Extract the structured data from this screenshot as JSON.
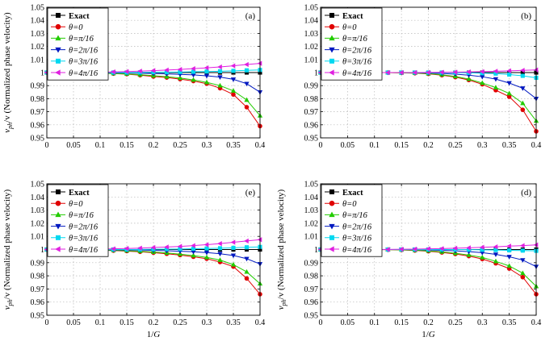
{
  "chart_data": [
    {
      "type": "line",
      "panel_label": "(a)",
      "xlabel": "",
      "ylabel": "v_ph/v (Normalized phase velocity)",
      "x": [
        0,
        0.025,
        0.05,
        0.075,
        0.1,
        0.125,
        0.15,
        0.175,
        0.2,
        0.225,
        0.25,
        0.275,
        0.3,
        0.325,
        0.35,
        0.375,
        0.4
      ],
      "xlim": [
        0,
        0.4
      ],
      "ylim": [
        0.95,
        1.05
      ],
      "xticks": [
        "0",
        "0.05",
        "0.1",
        "0.15",
        "0.2",
        "0.25",
        "0.3",
        "0.35",
        "0.4"
      ],
      "yticks": [
        "0.95",
        "0.96",
        "0.97",
        "0.98",
        "0.99",
        "1",
        "1.01",
        "1.02",
        "1.03",
        "1.04",
        "1.05"
      ],
      "legend": "top-left",
      "series": [
        {
          "name": "Exact",
          "marker": "square",
          "color": "#000000",
          "values": [
            1,
            1,
            1,
            1,
            1,
            1,
            1,
            1,
            1,
            1,
            1,
            1,
            1,
            1,
            1,
            1,
            1
          ]
        },
        {
          "name": "θ=0",
          "marker": "circle",
          "color": "#e00000",
          "values": [
            1,
            1,
            1,
            0.9999,
            0.9995,
            0.9992,
            0.9988,
            0.998,
            0.997,
            0.9962,
            0.995,
            0.9935,
            0.9915,
            0.988,
            0.9832,
            0.9735,
            0.959
          ]
        },
        {
          "name": "θ=π/16",
          "marker": "triangle-up",
          "color": "#22cc00",
          "values": [
            1,
            1,
            1,
            0.9999,
            0.9996,
            0.9993,
            0.999,
            0.9984,
            0.9976,
            0.9968,
            0.9958,
            0.9944,
            0.9925,
            0.99,
            0.986,
            0.979,
            0.967
          ]
        },
        {
          "name": "θ=2π/16",
          "marker": "triangle-down",
          "color": "#0018c0",
          "values": [
            1,
            1,
            1,
            1,
            0.9999,
            0.9998,
            0.9997,
            0.9995,
            0.9993,
            0.999,
            0.9986,
            0.9982,
            0.9975,
            0.9965,
            0.9948,
            0.9915,
            0.985
          ]
        },
        {
          "name": "θ=3π/16",
          "marker": "square",
          "color": "#00d8f0",
          "values": [
            1,
            1,
            1,
            1,
            1,
            1,
            1,
            1.0001,
            1.0002,
            1.0003,
            1.0004,
            1.0006,
            1.0008,
            1.001,
            1.0013,
            1.0017,
            1.002
          ]
        },
        {
          "name": "θ=4π/16",
          "marker": "triangle-left",
          "color": "#e020e0",
          "values": [
            1,
            1,
            1,
            1.0001,
            1.0003,
            1.0005,
            1.0008,
            1.0011,
            1.0015,
            1.0019,
            1.0024,
            1.003,
            1.0036,
            1.0043,
            1.0052,
            1.0062,
            1.007
          ]
        }
      ]
    },
    {
      "type": "line",
      "panel_label": "(b)",
      "xlabel": "",
      "ylabel": "",
      "x": [
        0,
        0.025,
        0.05,
        0.075,
        0.1,
        0.125,
        0.15,
        0.175,
        0.2,
        0.225,
        0.25,
        0.275,
        0.3,
        0.325,
        0.35,
        0.375,
        0.4
      ],
      "xlim": [
        0,
        0.4
      ],
      "ylim": [
        0.95,
        1.05
      ],
      "xticks": [
        "0",
        "0.05",
        "0.1",
        "0.15",
        "0.2",
        "0.25",
        "0.3",
        "0.35",
        "0.4"
      ],
      "yticks": [
        "0.95",
        "0.96",
        "0.97",
        "0.98",
        "0.99",
        "1",
        "1.01",
        "1.02",
        "1.03",
        "1.04",
        "1.05"
      ],
      "legend": "top-left",
      "series": [
        {
          "name": "Exact",
          "marker": "square",
          "color": "#000000",
          "values": [
            1,
            1,
            1,
            1,
            1,
            1,
            1,
            1,
            1,
            1,
            1,
            1,
            1,
            1,
            1,
            1,
            1
          ]
        },
        {
          "name": "θ=0",
          "marker": "circle",
          "color": "#e00000",
          "values": [
            1,
            1,
            1,
            1,
            1,
            1,
            0.9998,
            0.9995,
            0.999,
            0.998,
            0.9965,
            0.9943,
            0.991,
            0.9865,
            0.9815,
            0.9715,
            0.955
          ]
        },
        {
          "name": "θ=π/16",
          "marker": "triangle-up",
          "color": "#22cc00",
          "values": [
            1,
            1,
            1,
            1,
            1,
            1,
            0.9998,
            0.9996,
            0.9992,
            0.9983,
            0.997,
            0.995,
            0.992,
            0.9885,
            0.984,
            0.9765,
            0.963
          ]
        },
        {
          "name": "θ=2π/16",
          "marker": "triangle-down",
          "color": "#0018c0",
          "values": [
            1,
            1,
            1,
            1,
            1,
            1,
            1,
            0.9999,
            0.9997,
            0.9993,
            0.9988,
            0.998,
            0.9968,
            0.995,
            0.992,
            0.988,
            0.98
          ]
        },
        {
          "name": "θ=3π/16",
          "marker": "square",
          "color": "#00d8f0",
          "values": [
            1,
            1,
            1,
            1,
            1,
            1,
            1,
            1,
            1,
            1,
            0.9999,
            0.9998,
            0.9995,
            0.9992,
            0.9985,
            0.9975,
            0.996
          ]
        },
        {
          "name": "θ=4π/16",
          "marker": "triangle-left",
          "color": "#e020e0",
          "values": [
            1,
            1,
            1,
            1,
            1,
            1,
            1,
            1,
            1.0001,
            1.0002,
            1.0003,
            1.0005,
            1.0007,
            1.001,
            1.0013,
            1.0017,
            1.002
          ]
        }
      ]
    },
    {
      "type": "line",
      "panel_label": "(e)",
      "xlabel": "1/G",
      "ylabel": "v_ph/v (Normalized phase velocity)",
      "x": [
        0,
        0.025,
        0.05,
        0.075,
        0.1,
        0.125,
        0.15,
        0.175,
        0.2,
        0.225,
        0.25,
        0.275,
        0.3,
        0.325,
        0.35,
        0.375,
        0.4
      ],
      "xlim": [
        0,
        0.4
      ],
      "ylim": [
        0.95,
        1.05
      ],
      "xticks": [
        "0",
        "0.05",
        "0.1",
        "0.15",
        "0.2",
        "0.25",
        "0.3",
        "0.35",
        "0.4"
      ],
      "yticks": [
        "0.95",
        "0.96",
        "0.97",
        "0.98",
        "0.99",
        "1",
        "1.01",
        "1.02",
        "1.03",
        "1.04",
        "1.05"
      ],
      "legend": "top-left",
      "series": [
        {
          "name": "Exact",
          "marker": "square",
          "color": "#000000",
          "values": [
            1,
            1,
            1,
            1,
            1,
            1,
            1,
            1,
            1,
            1,
            1,
            1,
            1,
            1,
            1,
            1,
            1
          ]
        },
        {
          "name": "θ=0",
          "marker": "circle",
          "color": "#e00000",
          "values": [
            1,
            1,
            1,
            0.9999,
            0.9995,
            0.9992,
            0.9988,
            0.9983,
            0.9976,
            0.9968,
            0.9958,
            0.9945,
            0.993,
            0.9905,
            0.987,
            0.978,
            0.966
          ]
        },
        {
          "name": "θ=π/16",
          "marker": "triangle-up",
          "color": "#22cc00",
          "values": [
            1,
            1,
            1,
            0.9999,
            0.9996,
            0.9994,
            0.9991,
            0.9987,
            0.9981,
            0.9974,
            0.9965,
            0.9954,
            0.994,
            0.992,
            0.9885,
            0.983,
            0.974
          ]
        },
        {
          "name": "θ=2π/16",
          "marker": "triangle-down",
          "color": "#0018c0",
          "values": [
            1,
            1,
            1,
            1,
            0.9999,
            0.9998,
            0.9997,
            0.9996,
            0.9994,
            0.9991,
            0.9987,
            0.9983,
            0.9977,
            0.9968,
            0.9955,
            0.993,
            0.989
          ]
        },
        {
          "name": "θ=3π/16",
          "marker": "square",
          "color": "#00d8f0",
          "values": [
            1,
            1,
            1,
            1,
            1,
            1,
            1,
            1.0001,
            1.0002,
            1.0003,
            1.0004,
            1.0006,
            1.0008,
            1.001,
            1.0013,
            1.0017,
            1.002
          ]
        },
        {
          "name": "θ=4π/16",
          "marker": "triangle-left",
          "color": "#e020e0",
          "values": [
            1,
            1,
            1,
            1.0001,
            1.0003,
            1.0005,
            1.0008,
            1.0011,
            1.0015,
            1.0019,
            1.0024,
            1.003,
            1.0037,
            1.0045,
            1.0055,
            1.0065,
            1.0075
          ]
        }
      ]
    },
    {
      "type": "line",
      "panel_label": "(d)",
      "xlabel": "1/G",
      "ylabel": "v_ph/v (Normalized phase velocity)",
      "x": [
        0,
        0.025,
        0.05,
        0.075,
        0.1,
        0.125,
        0.15,
        0.175,
        0.2,
        0.225,
        0.25,
        0.275,
        0.3,
        0.325,
        0.35,
        0.375,
        0.4
      ],
      "xlim": [
        0,
        0.4
      ],
      "ylim": [
        0.95,
        1.05
      ],
      "xticks": [
        "0",
        "0.05",
        "0.1",
        "0.15",
        "0.2",
        "0.25",
        "0.3",
        "0.35",
        "0.4"
      ],
      "yticks": [
        "0.95",
        "0.96",
        "0.97",
        "0.98",
        "0.99",
        "1",
        "1.01",
        "1.02",
        "1.03",
        "1.04",
        "1.05"
      ],
      "legend": "top-left",
      "series": [
        {
          "name": "Exact",
          "marker": "square",
          "color": "#000000",
          "values": [
            1,
            1,
            1,
            1,
            1,
            1,
            1,
            1,
            1,
            1,
            1,
            1,
            1,
            1,
            1,
            1,
            1
          ]
        },
        {
          "name": "θ=0",
          "marker": "circle",
          "color": "#e00000",
          "values": [
            1,
            1,
            1,
            1,
            1,
            0.9999,
            0.9997,
            0.9993,
            0.9987,
            0.9978,
            0.9966,
            0.995,
            0.9928,
            0.9895,
            0.9855,
            0.979,
            0.966
          ]
        },
        {
          "name": "θ=π/16",
          "marker": "triangle-up",
          "color": "#22cc00",
          "values": [
            1,
            1,
            1,
            1,
            1,
            0.9999,
            0.9998,
            0.9995,
            0.999,
            0.9982,
            0.9972,
            0.9958,
            0.994,
            0.991,
            0.9875,
            0.982,
            0.972
          ]
        },
        {
          "name": "θ=2π/16",
          "marker": "triangle-down",
          "color": "#0018c0",
          "values": [
            1,
            1,
            1,
            1,
            1,
            1,
            1,
            0.9999,
            0.9997,
            0.9994,
            0.999,
            0.9984,
            0.9976,
            0.9963,
            0.9945,
            0.992,
            0.987
          ]
        },
        {
          "name": "θ=3π/16",
          "marker": "square",
          "color": "#00d8f0",
          "values": [
            1,
            1,
            1,
            1,
            1,
            1,
            1,
            1,
            1,
            1,
            1,
            0.9999,
            0.9998,
            0.9996,
            0.9994,
            0.9992,
            0.999
          ]
        },
        {
          "name": "θ=4π/16",
          "marker": "triangle-left",
          "color": "#e020e0",
          "values": [
            1,
            1,
            1,
            1,
            1,
            1.0001,
            1.0002,
            1.0003,
            1.0005,
            1.0007,
            1.001,
            1.0013,
            1.0017,
            1.0021,
            1.0026,
            1.003,
            1.0035
          ]
        }
      ]
    }
  ]
}
